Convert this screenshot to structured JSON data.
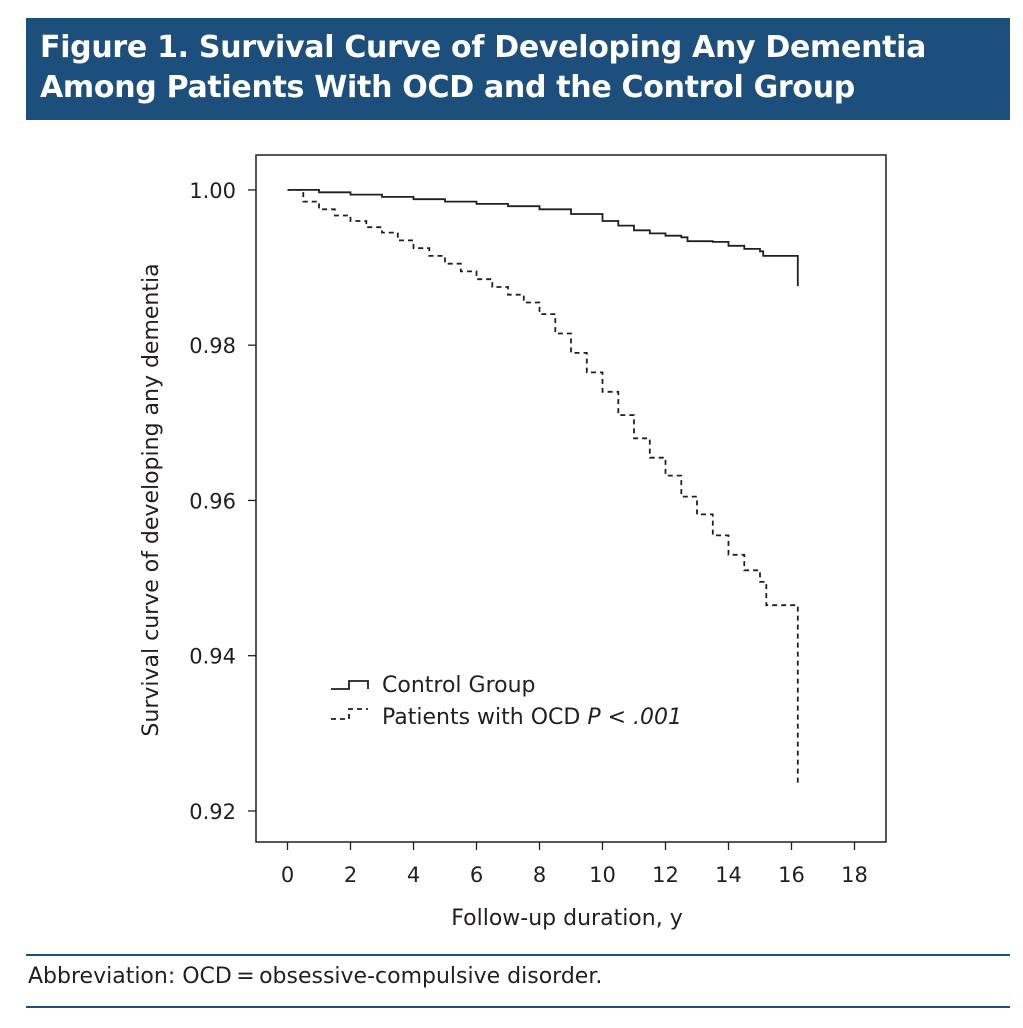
{
  "figure": {
    "title_line1": "Figure 1. Survival Curve of Developing Any Dementia",
    "title_line2": "Among Patients With OCD and the Control Group",
    "footnote": "Abbreviation: OCD = obsessive-compulsive disorder."
  },
  "colors": {
    "title_bar": "#1d4f7c",
    "title_text": "#ffffff",
    "lines": "#231f20"
  },
  "chart_data": {
    "type": "line",
    "title": "",
    "xlabel": "Follow-up duration, y",
    "ylabel": "Survival curve of developing any dementia",
    "xlim": [
      -1,
      19
    ],
    "ylim": [
      0.916,
      1.0045
    ],
    "xticks": [
      0,
      2,
      4,
      6,
      8,
      10,
      12,
      14,
      16,
      18
    ],
    "xtick_labels": [
      "0",
      "2",
      "4",
      "6",
      "8",
      "10",
      "12",
      "14",
      "16",
      "18"
    ],
    "yticks": [
      0.92,
      0.94,
      0.96,
      0.98,
      1.0
    ],
    "ytick_labels": [
      "0.92",
      "0.94",
      "0.96",
      "0.98",
      "1.00"
    ],
    "grid": false,
    "legend_position": "bottom-left",
    "legend_annotation": "P < .001",
    "step": true,
    "series": [
      {
        "name": "Control Group",
        "style": "solid",
        "x": [
          0,
          1,
          2,
          3,
          4,
          5,
          6,
          7,
          8,
          9,
          10,
          10.5,
          11,
          11.5,
          12,
          12.5,
          12.7,
          13.5,
          14,
          14.5,
          15,
          15.1,
          16.2,
          16.2
        ],
        "y": [
          1.0,
          0.9997,
          0.9994,
          0.9991,
          0.9988,
          0.9985,
          0.9982,
          0.9979,
          0.9975,
          0.9969,
          0.996,
          0.9954,
          0.9948,
          0.9944,
          0.9941,
          0.9939,
          0.9934,
          0.9933,
          0.9928,
          0.9924,
          0.9921,
          0.9915,
          0.9913,
          0.9876
        ]
      },
      {
        "name": "Patients with OCD",
        "style": "dashed",
        "x": [
          0,
          0.5,
          1,
          1.5,
          2,
          2.5,
          3,
          3.5,
          4,
          4.5,
          5,
          5.5,
          6,
          6.5,
          7,
          7.5,
          8,
          8.5,
          9,
          9.5,
          10,
          10.5,
          11,
          11.5,
          12,
          12.5,
          13,
          13.5,
          14,
          14.5,
          15,
          15.2,
          16.2,
          16.2
        ],
        "y": [
          1.0,
          0.9985,
          0.9975,
          0.9967,
          0.996,
          0.9952,
          0.9945,
          0.9935,
          0.9925,
          0.9915,
          0.9905,
          0.9895,
          0.9885,
          0.9875,
          0.9865,
          0.9855,
          0.984,
          0.9815,
          0.979,
          0.9765,
          0.974,
          0.971,
          0.968,
          0.9655,
          0.9632,
          0.9605,
          0.9582,
          0.9555,
          0.953,
          0.951,
          0.9495,
          0.9465,
          0.9465,
          0.9235
        ]
      }
    ]
  }
}
